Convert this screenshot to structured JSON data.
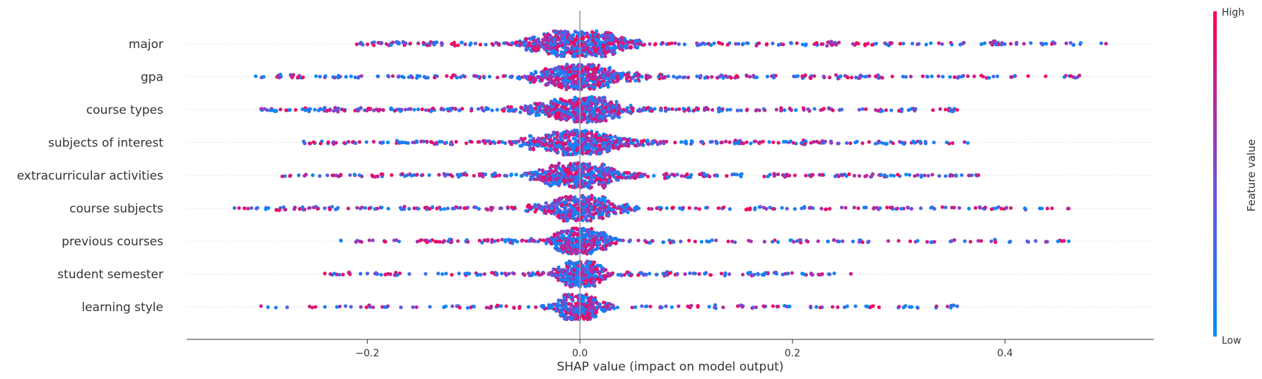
{
  "chart_data": {
    "type": "scatter",
    "subtype": "shap-beeswarm",
    "xlabel": "SHAP value (impact on model output)",
    "xlim": [
      -0.37,
      0.54
    ],
    "x_ticks": [
      -0.2,
      0.0,
      0.2,
      0.4
    ],
    "x_tick_labels": [
      "−0.2",
      "0.0",
      "0.2",
      "0.4"
    ],
    "features": [
      {
        "name": "major",
        "min": -0.21,
        "max": 0.495,
        "core_width": 0.055,
        "density": 820,
        "seed": 11
      },
      {
        "name": "gpa",
        "min": -0.305,
        "max": 0.47,
        "core_width": 0.05,
        "density": 760,
        "seed": 23
      },
      {
        "name": "course types",
        "min": -0.3,
        "max": 0.355,
        "core_width": 0.055,
        "density": 760,
        "seed": 37
      },
      {
        "name": "subjects of interest",
        "min": -0.26,
        "max": 0.365,
        "core_width": 0.06,
        "density": 720,
        "seed": 41
      },
      {
        "name": "extracurricular activities",
        "min": -0.28,
        "max": 0.375,
        "core_width": 0.05,
        "density": 680,
        "seed": 53
      },
      {
        "name": "course subjects",
        "min": -0.325,
        "max": 0.46,
        "core_width": 0.045,
        "density": 640,
        "seed": 67
      },
      {
        "name": "previous courses",
        "min": -0.225,
        "max": 0.46,
        "core_width": 0.03,
        "density": 540,
        "seed": 71
      },
      {
        "name": "student semester",
        "min": -0.24,
        "max": 0.255,
        "core_width": 0.025,
        "density": 520,
        "seed": 83
      },
      {
        "name": "learning style",
        "min": -0.3,
        "max": 0.355,
        "core_width": 0.025,
        "density": 480,
        "seed": 97
      }
    ],
    "colorbar": {
      "label": "Feature value",
      "high_label": "High",
      "low_label": "Low",
      "high_color": "#ff0052",
      "low_color": "#008bfb"
    },
    "grid": false,
    "zero_line_color": "#999999"
  }
}
